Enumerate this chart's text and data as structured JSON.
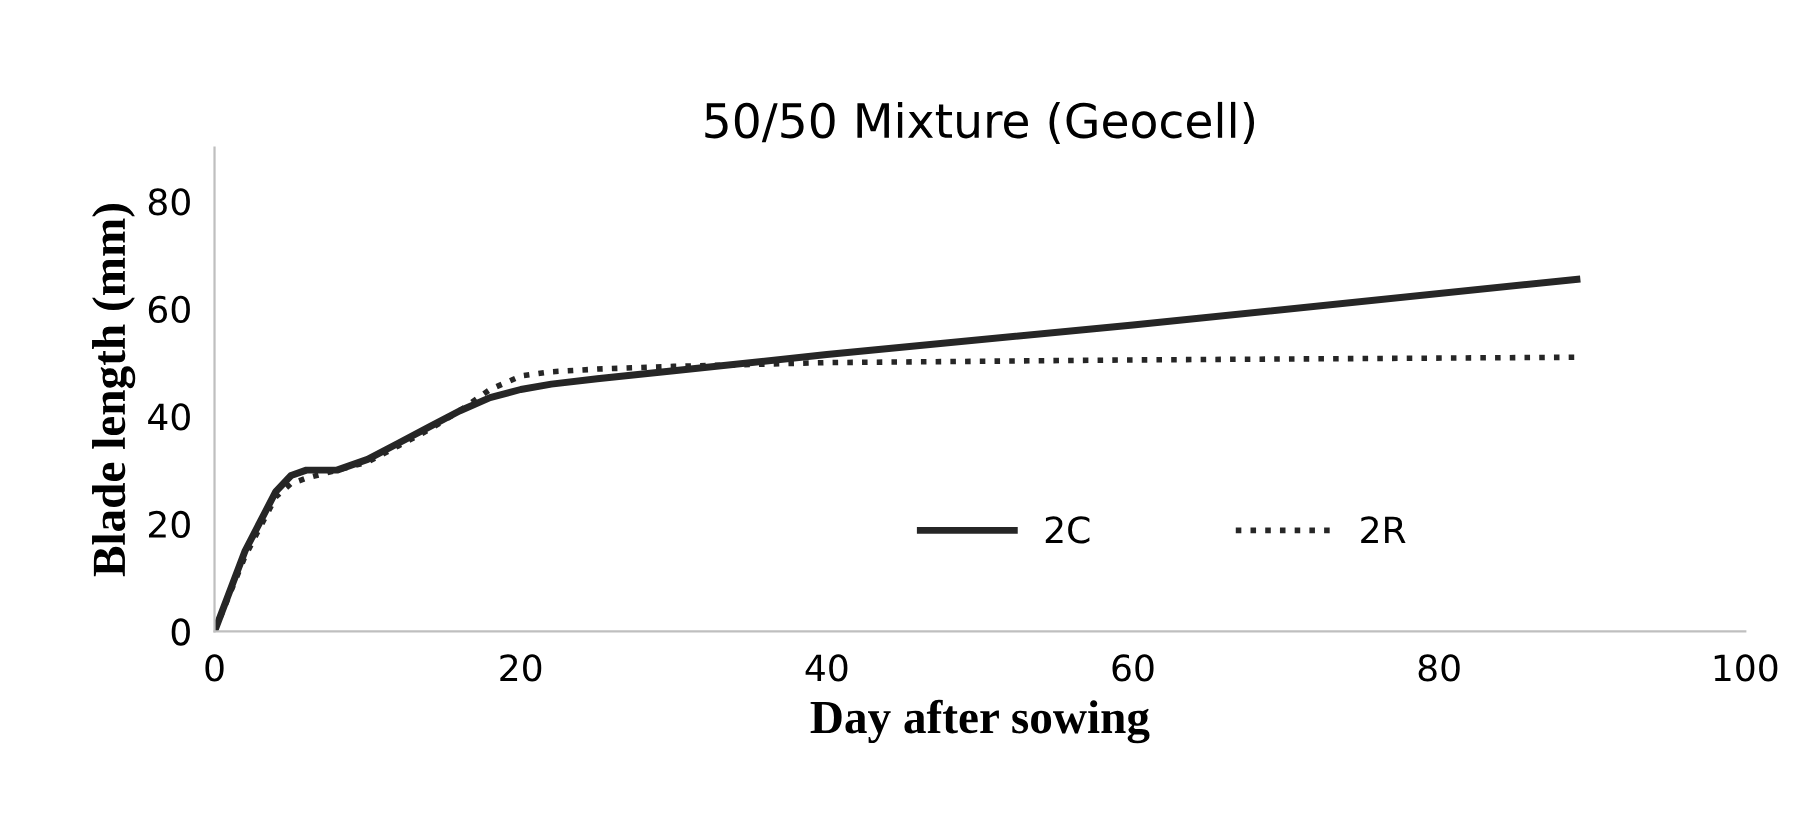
{
  "chart_data": {
    "type": "line",
    "title": "50/50 Mixture (Geocell)",
    "xlabel": "Day after sowing",
    "ylabel": "Blade length (mm)",
    "xlim": [
      0,
      100
    ],
    "xticks": [
      0,
      20,
      40,
      60,
      80,
      100
    ],
    "ylim": [
      0,
      90
    ],
    "yticks": [
      0,
      20,
      40,
      60,
      80
    ],
    "grid": false,
    "legend": "bottom right",
    "marker": "none",
    "series": [
      {
        "name": "2C",
        "color": "#262626",
        "line_style": "solid",
        "x": [
          0,
          2,
          4,
          5,
          6,
          8,
          10,
          12,
          14,
          16,
          18,
          20,
          22,
          25,
          30,
          40,
          60,
          89
        ],
        "values": [
          0,
          15,
          26,
          29,
          30,
          30,
          32,
          35,
          38,
          41,
          43.5,
          45,
          46,
          47,
          48.5,
          51.5,
          57,
          65.5
        ]
      },
      {
        "name": "2R",
        "color": "#262626",
        "line_style": "dotted",
        "x": [
          0,
          2,
          4,
          5,
          6,
          8,
          10,
          12,
          14,
          16,
          18,
          20,
          22,
          25,
          30,
          40,
          60,
          89
        ],
        "values": [
          0,
          14,
          25,
          27.5,
          28.5,
          30,
          31.5,
          34.5,
          37.5,
          41,
          45,
          47.5,
          48.3,
          48.8,
          49.3,
          50,
          50.5,
          51
        ]
      }
    ]
  }
}
